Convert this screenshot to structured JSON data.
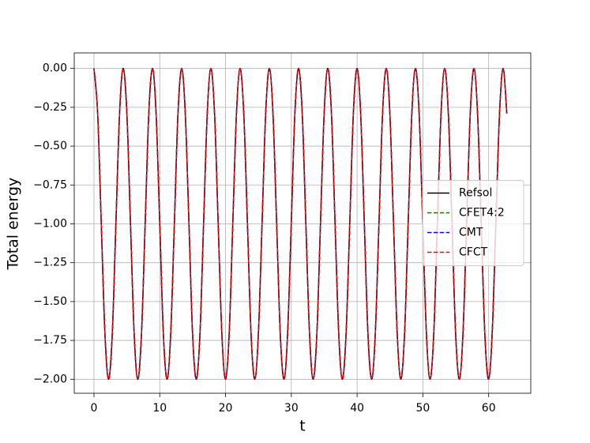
{
  "chart_data": {
    "type": "line",
    "xlabel": "t",
    "ylabel": "Total energy",
    "x": [
      0,
      0.56,
      1.11,
      1.67,
      2.22,
      2.78,
      3.33,
      3.89,
      4.44,
      5.0,
      5.55,
      6.11,
      6.66,
      7.22,
      7.78,
      8.33,
      8.89,
      9.44,
      10.0,
      10.55,
      11.11,
      11.66,
      12.22,
      12.77,
      13.33,
      13.88,
      14.44,
      14.99,
      15.55,
      16.11,
      16.66,
      17.22,
      17.77,
      18.33,
      18.88,
      19.44,
      19.99,
      20.55,
      21.1,
      21.66,
      22.21,
      22.77,
      23.33,
      23.88,
      24.44,
      24.99,
      25.55,
      26.1,
      26.66,
      27.21,
      27.77,
      28.32,
      28.88,
      29.43,
      29.99,
      30.54,
      31.1,
      31.66,
      32.21,
      32.77,
      33.32,
      33.88,
      34.43,
      34.99,
      35.54,
      36.1,
      36.65,
      37.21,
      37.76,
      38.32,
      38.88,
      39.43,
      39.99,
      40.54,
      41.1,
      41.65,
      42.21,
      42.76,
      43.32,
      43.87,
      44.43,
      44.98,
      45.54,
      46.1,
      46.65,
      47.21,
      47.76,
      48.32,
      48.87,
      49.43,
      49.98,
      50.54,
      51.09,
      51.65,
      52.2,
      52.76,
      53.31,
      53.87,
      54.43,
      54.98,
      55.54,
      56.09,
      56.65,
      57.2,
      57.76,
      58.31,
      58.87,
      59.42,
      59.98,
      60.53,
      61.09,
      61.65,
      62.2,
      62.76
    ],
    "series": [
      {
        "name": "Refsol",
        "color": "#000000",
        "linestyle": "solid",
        "values": [
          0,
          -0.29,
          -1,
          -1.71,
          -2,
          -1.71,
          -1,
          -0.29,
          0,
          -0.29,
          -1,
          -1.71,
          -2,
          -1.71,
          -1,
          -0.29,
          0,
          -0.29,
          -1,
          -1.71,
          -2,
          -1.71,
          -1,
          -0.29,
          0,
          -0.29,
          -1,
          -1.71,
          -2,
          -1.71,
          -1,
          -0.29,
          0,
          -0.29,
          -1,
          -1.71,
          -2,
          -1.71,
          -1,
          -0.29,
          0,
          -0.29,
          -1,
          -1.71,
          -2,
          -1.71,
          -1,
          -0.29,
          0,
          -0.29,
          -1,
          -1.71,
          -2,
          -1.71,
          -1,
          -0.29,
          0,
          -0.29,
          -1,
          -1.71,
          -2,
          -1.71,
          -1,
          -0.29,
          0,
          -0.29,
          -1,
          -1.71,
          -2,
          -1.71,
          -1,
          -0.29,
          0,
          -0.29,
          -1,
          -1.71,
          -2,
          -1.71,
          -1,
          -0.29,
          0,
          -0.29,
          -1,
          -1.71,
          -2,
          -1.71,
          -1,
          -0.29,
          0,
          -0.29,
          -1,
          -1.71,
          -2,
          -1.71,
          -1,
          -0.29,
          0,
          -0.29,
          -1,
          -1.71,
          -2,
          -1.71,
          -1,
          -0.29,
          0,
          -0.29,
          -1,
          -1.71,
          -2,
          -1.71,
          -1,
          -0.29,
          0,
          -0.29
        ]
      },
      {
        "name": "CFET4:2",
        "color": "#008000",
        "linestyle": "dashed",
        "values": [
          0,
          -0.29,
          -1,
          -1.71,
          -2,
          -1.71,
          -1,
          -0.29,
          0,
          -0.29,
          -1,
          -1.71,
          -2,
          -1.71,
          -1,
          -0.29,
          0,
          -0.29,
          -1,
          -1.71,
          -2,
          -1.71,
          -1,
          -0.29,
          0,
          -0.29,
          -1,
          -1.71,
          -2,
          -1.71,
          -1,
          -0.29,
          0,
          -0.29,
          -1,
          -1.71,
          -2,
          -1.71,
          -1,
          -0.29,
          0,
          -0.29,
          -1,
          -1.71,
          -2,
          -1.71,
          -1,
          -0.29,
          0,
          -0.29,
          -1,
          -1.71,
          -2,
          -1.71,
          -1,
          -0.29,
          0,
          -0.29,
          -1,
          -1.71,
          -2,
          -1.71,
          -1,
          -0.29,
          0,
          -0.29,
          -1,
          -1.71,
          -2,
          -1.71,
          -1,
          -0.29,
          0,
          -0.29,
          -1,
          -1.71,
          -2,
          -1.71,
          -1,
          -0.29,
          0,
          -0.29,
          -1,
          -1.71,
          -2,
          -1.71,
          -1,
          -0.29,
          0,
          -0.29,
          -1,
          -1.71,
          -2,
          -1.71,
          -1,
          -0.29,
          0,
          -0.29,
          -1,
          -1.71,
          -2,
          -1.71,
          -1,
          -0.29,
          0,
          -0.29,
          -1,
          -1.71,
          -2,
          -1.71,
          -1,
          -0.29,
          0,
          -0.29
        ]
      },
      {
        "name": "CMT",
        "color": "#0000ff",
        "linestyle": "dashed",
        "values": [
          0,
          -0.29,
          -1,
          -1.71,
          -2,
          -1.71,
          -1,
          -0.29,
          0,
          -0.29,
          -1,
          -1.71,
          -2,
          -1.71,
          -1,
          -0.29,
          0,
          -0.29,
          -1,
          -1.71,
          -2,
          -1.71,
          -1,
          -0.29,
          0,
          -0.29,
          -1,
          -1.71,
          -2,
          -1.71,
          -1,
          -0.29,
          0,
          -0.29,
          -1,
          -1.71,
          -2,
          -1.71,
          -1,
          -0.29,
          0,
          -0.29,
          -1,
          -1.71,
          -2,
          -1.71,
          -1,
          -0.29,
          0,
          -0.29,
          -1,
          -1.71,
          -2,
          -1.71,
          -1,
          -0.29,
          0,
          -0.29,
          -1,
          -1.71,
          -2,
          -1.71,
          -1,
          -0.29,
          0,
          -0.29,
          -1,
          -1.71,
          -2,
          -1.71,
          -1,
          -0.29,
          0,
          -0.29,
          -1,
          -1.71,
          -2,
          -1.71,
          -1,
          -0.29,
          0,
          -0.29,
          -1,
          -1.71,
          -2,
          -1.71,
          -1,
          -0.29,
          0,
          -0.29,
          -1,
          -1.71,
          -2,
          -1.71,
          -1,
          -0.29,
          0,
          -0.29,
          -1,
          -1.71,
          -2,
          -1.71,
          -1,
          -0.29,
          0,
          -0.29,
          -1,
          -1.71,
          -2,
          -1.71,
          -1,
          -0.29,
          0,
          -0.29
        ]
      },
      {
        "name": "CFCT",
        "color": "#ff0000",
        "linestyle": "dashed",
        "values": [
          0,
          -0.29,
          -1,
          -1.71,
          -2,
          -1.71,
          -1,
          -0.29,
          0,
          -0.29,
          -1,
          -1.71,
          -2,
          -1.71,
          -1,
          -0.29,
          0,
          -0.29,
          -1,
          -1.71,
          -2,
          -1.71,
          -1,
          -0.29,
          0,
          -0.29,
          -1,
          -1.71,
          -2,
          -1.71,
          -1,
          -0.29,
          0,
          -0.29,
          -1,
          -1.71,
          -2,
          -1.71,
          -1,
          -0.29,
          0,
          -0.29,
          -1,
          -1.71,
          -2,
          -1.71,
          -1,
          -0.29,
          0,
          -0.29,
          -1,
          -1.71,
          -2,
          -1.71,
          -1,
          -0.29,
          0,
          -0.29,
          -1,
          -1.71,
          -2,
          -1.71,
          -1,
          -0.29,
          0,
          -0.29,
          -1,
          -1.71,
          -2,
          -1.71,
          -1,
          -0.29,
          0,
          -0.29,
          -1,
          -1.71,
          -2,
          -1.71,
          -1,
          -0.29,
          0,
          -0.29,
          -1,
          -1.71,
          -2,
          -1.71,
          -1,
          -0.29,
          0,
          -0.29,
          -1,
          -1.71,
          -2,
          -1.71,
          -1,
          -0.29,
          0,
          -0.29,
          -1,
          -1.71,
          -2,
          -1.71,
          -1,
          -0.29,
          0,
          -0.29,
          -1,
          -1.71,
          -2,
          -1.71,
          -1,
          -0.29,
          0,
          -0.29
        ]
      }
    ],
    "xlim": [
      -3.0,
      66.4
    ],
    "ylim": [
      -2.09,
      0.1
    ],
    "xticks": [
      0,
      10,
      20,
      30,
      40,
      50,
      60
    ],
    "yticks": [
      {
        "value": 0,
        "label": "0.00"
      },
      {
        "value": -0.25,
        "label": "−0.25"
      },
      {
        "value": -0.5,
        "label": "−0.50"
      },
      {
        "value": -0.75,
        "label": "−0.75"
      },
      {
        "value": -1,
        "label": "−1.00"
      },
      {
        "value": -1.25,
        "label": "−1.25"
      },
      {
        "value": -1.5,
        "label": "−1.50"
      },
      {
        "value": -1.75,
        "label": "−1.75"
      },
      {
        "value": -2,
        "label": "−2.00"
      }
    ],
    "grid": true,
    "legend": "center right"
  }
}
